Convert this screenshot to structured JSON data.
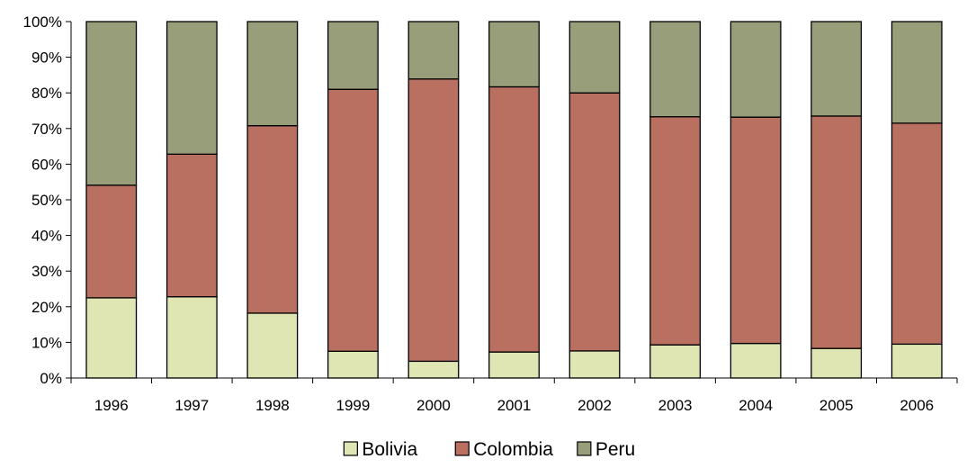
{
  "chart_data": {
    "type": "bar",
    "stacked": true,
    "normalized": true,
    "title": "",
    "xlabel": "",
    "ylabel": "",
    "ylim": [
      0,
      100
    ],
    "y_ticks": [
      "0%",
      "10%",
      "20%",
      "30%",
      "40%",
      "50%",
      "60%",
      "70%",
      "80%",
      "90%",
      "100%"
    ],
    "grid": false,
    "legend_position": "bottom",
    "categories": [
      "1996",
      "1997",
      "1998",
      "1999",
      "2000",
      "2001",
      "2002",
      "2003",
      "2004",
      "2005",
      "2006"
    ],
    "series": [
      {
        "name": "Bolivia",
        "color": "#dfe6b4",
        "values": [
          22.5,
          22.8,
          18.2,
          7.5,
          4.7,
          7.3,
          7.6,
          9.3,
          9.7,
          8.3,
          9.5
        ]
      },
      {
        "name": "Colombia",
        "color": "#b97061",
        "values": [
          31.6,
          40.0,
          52.6,
          73.5,
          79.2,
          74.4,
          72.4,
          64.0,
          63.5,
          65.2,
          62.0
        ]
      },
      {
        "name": "Peru",
        "color": "#999e7a",
        "values": [
          45.9,
          37.2,
          29.2,
          19.0,
          16.1,
          18.3,
          20.0,
          26.7,
          26.8,
          26.5,
          28.5
        ]
      }
    ]
  }
}
